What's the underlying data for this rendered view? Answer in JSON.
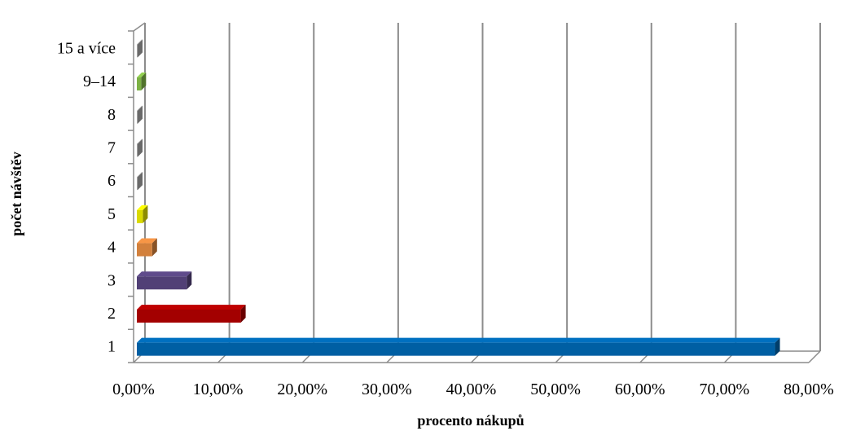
{
  "chart_data": {
    "type": "bar",
    "orientation": "horizontal",
    "style": "3d",
    "title": "",
    "xlabel": "procento nákupů",
    "ylabel": "počet návštěv",
    "categories": [
      "1",
      "2",
      "3",
      "4",
      "5",
      "6",
      "7",
      "8",
      "9–14",
      "15 a více"
    ],
    "values": [
      76.0,
      12.7,
      6.3,
      2.2,
      1.1,
      0.3,
      0.2,
      0.1,
      0.9,
      0.3
    ],
    "colors": [
      "#0070C0",
      "#C00000",
      "#5F4B8B",
      "#F79646",
      "#FFFF00",
      "#BFBFBF",
      "#BFBFBF",
      "#BFBFBF",
      "#92D050",
      "#BFBFBF"
    ],
    "xlim": [
      0,
      80
    ],
    "x_ticks": [
      "0,00%",
      "10,00%",
      "20,00%",
      "30,00%",
      "40,00%",
      "50,00%",
      "60,00%",
      "70,00%",
      "80,00%"
    ],
    "grid": "vertical",
    "legend": "none"
  }
}
